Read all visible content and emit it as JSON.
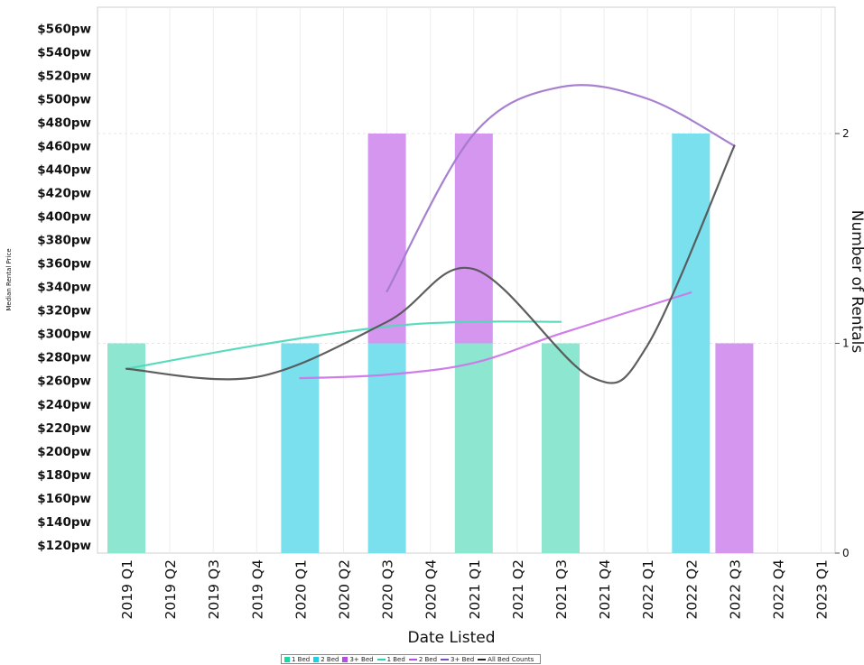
{
  "chart_data": {
    "type": "bar",
    "xlabel": "Date Listed",
    "ylabel": "Median Rental Price",
    "y2label": "Number of Rentals",
    "categories": [
      "2019 Q1",
      "2019 Q2",
      "2019 Q3",
      "2019 Q4",
      "2020 Q1",
      "2020 Q2",
      "2020 Q3",
      "2020 Q4",
      "2021 Q1",
      "2021 Q2",
      "2021 Q3",
      "2021 Q4",
      "2022 Q1",
      "2022 Q2",
      "2022 Q3",
      "2022 Q4",
      "2023 Q1"
    ],
    "y_ticks": [
      "$120pw",
      "$140pw",
      "$160pw",
      "$180pw",
      "$200pw",
      "$220pw",
      "$240pw",
      "$260pw",
      "$280pw",
      "$300pw",
      "$320pw",
      "$340pw",
      "$360pw",
      "$380pw",
      "$400pw",
      "$420pw",
      "$440pw",
      "$460pw",
      "$480pw",
      "$500pw",
      "$520pw",
      "$540pw",
      "$560pw"
    ],
    "ylim": [
      113,
      578
    ],
    "y2_ticks": [
      "0",
      "1",
      "2"
    ],
    "y2lim": [
      0,
      2
    ],
    "bar_series": [
      {
        "name": "1 Bed",
        "color": "#8de6d0",
        "counts": [
          1,
          0,
          0,
          0,
          0,
          0,
          0,
          0,
          1,
          0,
          1,
          0,
          0,
          0,
          0,
          0,
          0
        ]
      },
      {
        "name": "2 Bed",
        "color": "#7ae0ee",
        "counts": [
          0,
          0,
          0,
          0,
          1,
          0,
          1,
          0,
          0,
          0,
          0,
          0,
          0,
          2,
          0,
          0,
          0
        ]
      },
      {
        "name": "3+ Bed",
        "color": "#d496ee",
        "counts": [
          0,
          0,
          0,
          0,
          0,
          0,
          1,
          0,
          1,
          0,
          0,
          0,
          0,
          0,
          1,
          0,
          0
        ]
      }
    ],
    "line_series": [
      {
        "name": "1 Bed",
        "color": "#4fd9b8",
        "x": [
          0,
          3,
          6,
          8,
          10
        ],
        "y": [
          270,
          290,
          306,
          310,
          310
        ]
      },
      {
        "name": "2 Bed",
        "color": "#cc77e8",
        "x": [
          4,
          6,
          8,
          10,
          13
        ],
        "y": [
          262,
          265,
          275,
          300,
          335
        ]
      },
      {
        "name": "3+ Bed",
        "color": "#a27acc",
        "x": [
          6,
          8,
          10,
          12,
          14
        ],
        "y": [
          336,
          470,
          510,
          500,
          460
        ]
      },
      {
        "name": "All Bed Counts",
        "color": "#555555",
        "x": [
          0,
          3,
          6,
          8,
          10.7,
          12,
          14
        ],
        "y": [
          270,
          263,
          310,
          355,
          263,
          290,
          460
        ]
      }
    ],
    "legend": {
      "position": "bottom",
      "items": [
        {
          "label": "1 Bed",
          "kind": "bar",
          "color": "#1bd6a5"
        },
        {
          "label": "2 Bed",
          "kind": "bar",
          "color": "#20cfe6"
        },
        {
          "label": "3+ Bed",
          "kind": "bar",
          "color": "#b44ee0"
        },
        {
          "label": "1 Bed",
          "kind": "line",
          "color": "#2ed1ad"
        },
        {
          "label": "2 Bed",
          "kind": "line",
          "color": "#b84ee8"
        },
        {
          "label": "3+ Bed",
          "kind": "line",
          "color": "#7a4fb8"
        },
        {
          "label": "All Bed Counts",
          "kind": "line",
          "color": "#222222"
        }
      ]
    },
    "grid": true
  }
}
